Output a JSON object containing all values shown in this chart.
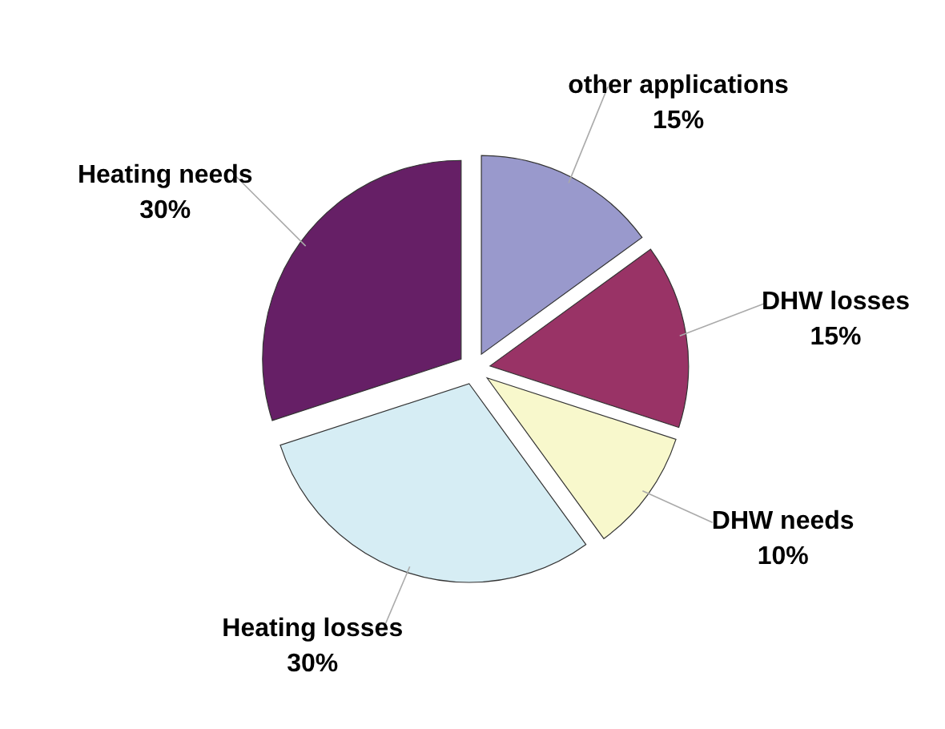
{
  "chart_data": {
    "type": "pie",
    "categories": [
      "other applications",
      "DHW losses",
      "DHW needs",
      "Heating losses",
      "Heating needs"
    ],
    "values": [
      15,
      15,
      10,
      30,
      30
    ],
    "colors": [
      "#9999cc",
      "#993366",
      "#f8f8cc",
      "#d6edf4",
      "#661f66"
    ],
    "value_labels": [
      "15%",
      "15%",
      "10%",
      "30%",
      "30%"
    ]
  }
}
